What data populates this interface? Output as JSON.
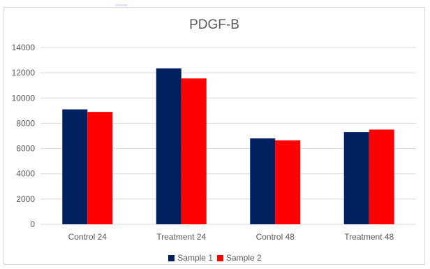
{
  "chart_data": {
    "type": "bar",
    "title": "PDGF-B",
    "xlabel": "",
    "ylabel": "",
    "categories": [
      "Control 24",
      "Treatment 24",
      "Control 48",
      "Treatment 48"
    ],
    "series": [
      {
        "name": "Sample 1",
        "color": "#002060",
        "values": [
          9100,
          12350,
          6800,
          7300
        ]
      },
      {
        "name": "Sample 2",
        "color": "#ff0000",
        "values": [
          8900,
          11550,
          6650,
          7500
        ]
      }
    ],
    "ylim": [
      0,
      14000
    ],
    "yticks": [
      0,
      2000,
      4000,
      6000,
      8000,
      10000,
      12000,
      14000
    ],
    "grid": true,
    "legend_position": "bottom"
  }
}
